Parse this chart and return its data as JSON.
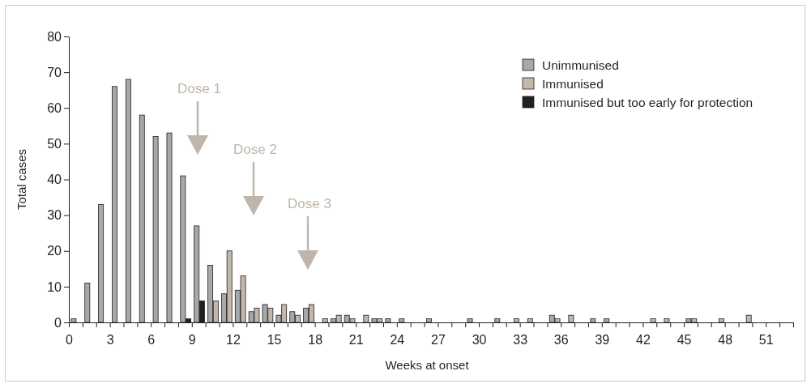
{
  "chart_data": {
    "type": "bar",
    "xlabel": "Weeks at onset",
    "ylabel": "Total cases",
    "xlim": [
      0,
      53
    ],
    "xticks": [
      0,
      {
        "value": 1,
        "label": null
      },
      {
        "value": 2,
        "label": null
      },
      3,
      {
        "value": 4,
        "label": null
      },
      {
        "value": 5,
        "label": null
      },
      6,
      {
        "value": 7,
        "label": null
      },
      {
        "value": 8,
        "label": null
      },
      9,
      {
        "value": 10,
        "label": null
      },
      {
        "value": 11,
        "label": null
      },
      12,
      {
        "value": 13,
        "label": null
      },
      {
        "value": 14,
        "label": null
      },
      15,
      {
        "value": 16,
        "label": null
      },
      {
        "value": 17,
        "label": null
      },
      18,
      {
        "value": 19,
        "label": null
      },
      {
        "value": 20,
        "label": null
      },
      21,
      {
        "value": 22,
        "label": null
      },
      {
        "value": 23,
        "label": null
      },
      24,
      {
        "value": 25,
        "label": null
      },
      {
        "value": 26,
        "label": null
      },
      27,
      {
        "value": 28,
        "label": null
      },
      {
        "value": 29,
        "label": null
      },
      30,
      {
        "value": 31,
        "label": null
      },
      {
        "value": 32,
        "label": null
      },
      33,
      {
        "value": 34,
        "label": null
      },
      {
        "value": 35,
        "label": null
      },
      36,
      {
        "value": 37,
        "label": null
      },
      {
        "value": 38,
        "label": null
      },
      39,
      {
        "value": 40,
        "label": null
      },
      {
        "value": 41,
        "label": null
      },
      42,
      {
        "value": 43,
        "label": null
      },
      {
        "value": 44,
        "label": null
      },
      45,
      {
        "value": 46,
        "label": null
      },
      {
        "value": 47,
        "label": null
      },
      48,
      {
        "value": 49,
        "label": null
      },
      {
        "value": 50,
        "label": null
      },
      51,
      {
        "value": 52,
        "label": null
      },
      {
        "value": 53,
        "label": null
      }
    ],
    "ylim": [
      0,
      80
    ],
    "yticks": [
      0,
      10,
      20,
      30,
      40,
      50,
      60,
      70,
      80
    ],
    "legend": "top right",
    "series": [
      {
        "name": "Unimmunised",
        "color": "#a6a8ab",
        "x": [
          0.35,
          1.35,
          2.35,
          3.35,
          4.35,
          5.35,
          6.35,
          7.35,
          8.35,
          9.35,
          10.35,
          11.35,
          12.35,
          13.35,
          14.35,
          15.35,
          16.35,
          17.35,
          19.35,
          20.35,
          22.35,
          23.35,
          24.35,
          26.35,
          29.35,
          31.35,
          35.35,
          38.35,
          39.35,
          45.35
        ],
        "values": [
          1,
          11,
          33,
          66,
          68,
          58,
          52,
          53,
          41,
          27,
          16,
          8,
          9,
          3,
          5,
          2,
          3,
          4,
          1,
          2,
          1,
          1,
          1,
          1,
          1,
          1,
          2,
          1,
          1,
          1
        ]
      },
      {
        "name": "Immunised",
        "color": "#c2b8ab",
        "x": [
          10.75,
          11.75,
          12.75,
          13.75,
          14.75,
          15.75,
          16.75,
          17.75,
          18.75,
          19.75,
          20.75,
          21.75,
          22.75,
          32.75,
          33.75,
          35.75,
          36.75,
          42.75,
          43.75,
          45.75,
          47.75,
          49.75
        ],
        "values": [
          6,
          20,
          13,
          4,
          4,
          5,
          2,
          5,
          1,
          2,
          1,
          2,
          1,
          1,
          1,
          1,
          2,
          1,
          1,
          1,
          1,
          2
        ]
      },
      {
        "name": "Immunised but too early for protection",
        "color": "#231f20",
        "x": [
          8.75,
          9.75
        ],
        "values": [
          1,
          6
        ]
      }
    ],
    "annotations": [
      "Dose 1",
      "Dose 2",
      "Dose 3"
    ]
  }
}
